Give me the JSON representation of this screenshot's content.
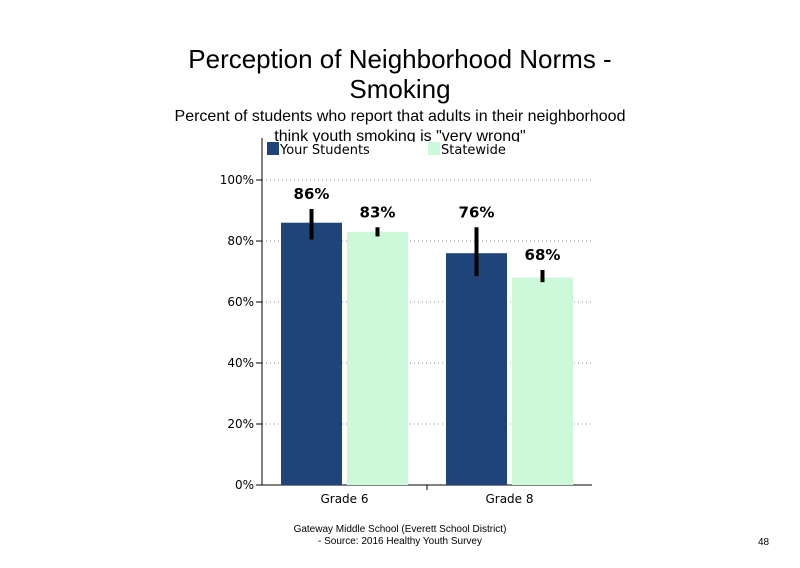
{
  "slide": {
    "title_line1": "Perception of Neighborhood Norms -",
    "title_line2": "Smoking",
    "subtitle_line1": "Percent of students who report that adults in their neighborhood",
    "subtitle_line2": "think youth smoking is \"very wrong\"",
    "footer_line1": "Gateway Middle School (Everett School District)",
    "footer_line2": "- Source: 2016 Healthy Youth Survey",
    "page_number": "48"
  },
  "chart_data": {
    "type": "bar",
    "categories": [
      "Grade 6",
      "Grade 8"
    ],
    "series": [
      {
        "name": "Your Students",
        "color": "#1f4479",
        "values": [
          86,
          76
        ],
        "labels": [
          "86%",
          "76%"
        ],
        "error_low": [
          80.5,
          68.5
        ],
        "error_high": [
          90.5,
          84.5
        ]
      },
      {
        "name": "Statewide",
        "color": "#ccf9d9",
        "values": [
          83,
          68
        ],
        "labels": [
          "83%",
          "68%"
        ],
        "error_low": [
          81.5,
          66.5
        ],
        "error_high": [
          84.5,
          70.5
        ]
      }
    ],
    "ylim": [
      0,
      100
    ],
    "yticks": [
      0,
      20,
      40,
      60,
      80,
      100
    ],
    "ytick_labels": [
      "0%",
      "20%",
      "40%",
      "60%",
      "80%",
      "100%"
    ],
    "grid": "dotted horizontal",
    "legend_position": "top",
    "xlabel": "",
    "ylabel": ""
  }
}
